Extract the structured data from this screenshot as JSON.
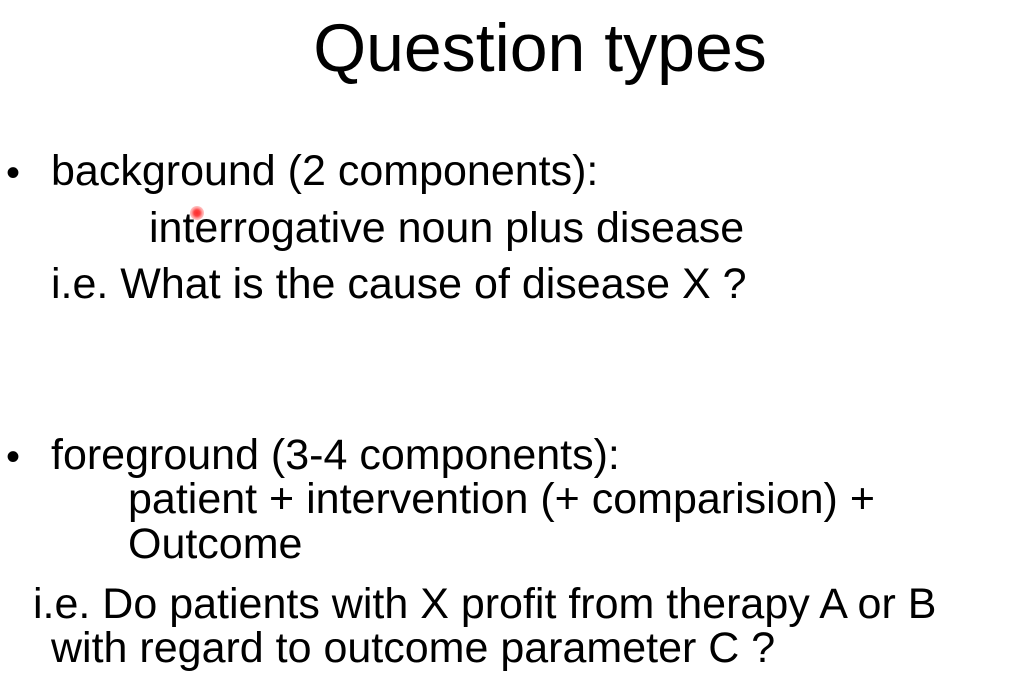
{
  "slide": {
    "title": "Question types",
    "bullets": [
      {
        "bullet_glyph": "•",
        "heading": "background (2 components):",
        "lines": [
          "interrogative noun plus disease",
          "i.e.  What is the cause of disease X ?"
        ]
      },
      {
        "bullet_glyph": "•",
        "heading": "foreground (3-4 components):",
        "lines": [
          "patient + intervention (+ comparision) +",
          "Outcome",
          "i.e. Do patients with X profit from therapy A or B",
          "with regard to outcome parameter C ?"
        ]
      }
    ]
  },
  "pointer": {
    "color": "#ff2a2a"
  }
}
